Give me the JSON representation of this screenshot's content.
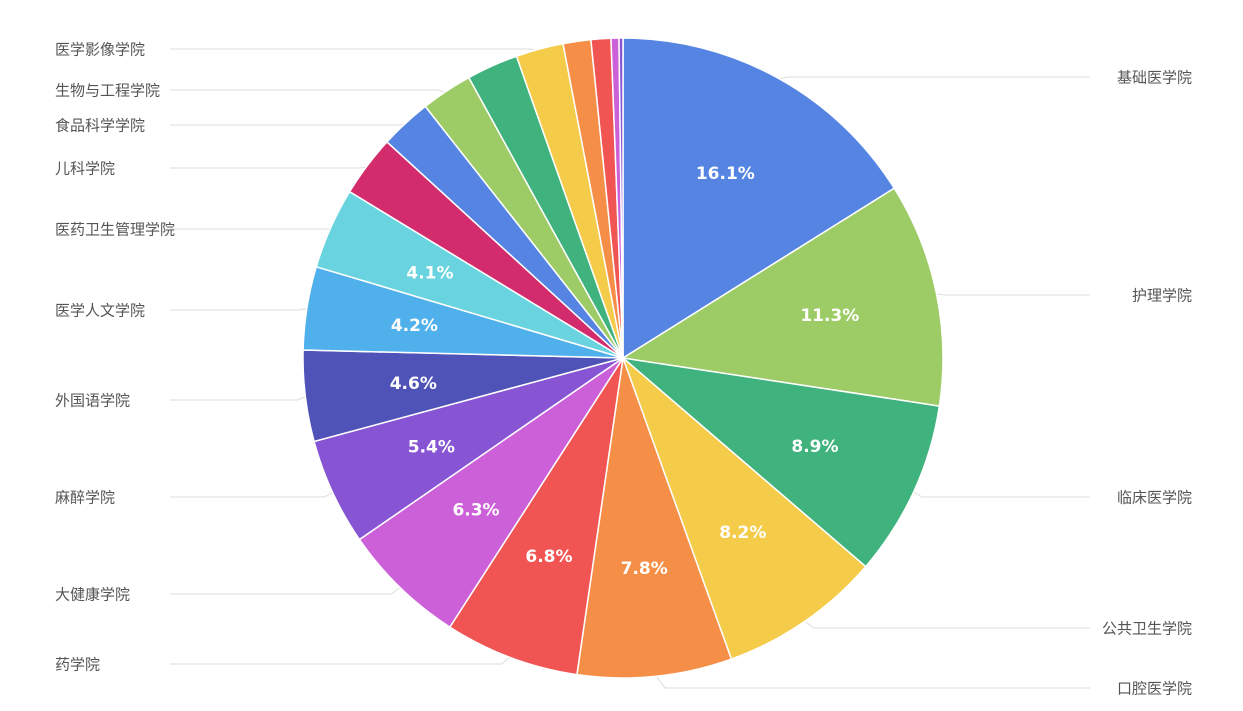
{
  "chart_data": {
    "type": "pie",
    "title": "",
    "start": "top",
    "direction": "clockwise",
    "slices": [
      {
        "name": "基础医学院",
        "value": 16.1,
        "label": "16.1%",
        "color": "#5584e3"
      },
      {
        "name": "护理学院",
        "value": 11.3,
        "label": "11.3%",
        "color": "#9dcc66"
      },
      {
        "name": "临床医学院",
        "value": 8.9,
        "label": "8.9%",
        "color": "#3fb27d"
      },
      {
        "name": "公共卫生学院",
        "value": 8.2,
        "label": "8.2%",
        "color": "#f5cb4a"
      },
      {
        "name": "口腔医学院",
        "value": 7.8,
        "label": "7.8%",
        "color": "#f58f47"
      },
      {
        "name": "药学院",
        "value": 6.8,
        "label": "6.8%",
        "color": "#f15553"
      },
      {
        "name": "大健康学院",
        "value": 6.3,
        "label": "6.3%",
        "color": "#cc60d8"
      },
      {
        "name": "麻醉学院",
        "value": 5.4,
        "label": "5.4%",
        "color": "#8755d4"
      },
      {
        "name": "外国语学院",
        "value": 4.6,
        "label": "4.6%",
        "color": "#4f53b8"
      },
      {
        "name": "医学人文学院",
        "value": 4.2,
        "label": "4.2%",
        "color": "#4fb0ec"
      },
      {
        "name": "医药卫生管理学院",
        "value": 4.1,
        "label": "4.1%",
        "color": "#69d4df"
      },
      {
        "name": "儿科学院",
        "value": 3.1,
        "color": "#d22c6c"
      },
      {
        "name": "食品科学学院",
        "value": 2.6,
        "color": "#5584e3"
      },
      {
        "name": "生物与工程学院",
        "value": 2.6,
        "color": "#9dcc66"
      },
      {
        "name": "",
        "value": 2.6,
        "color": "#3fb27d"
      },
      {
        "name": "医学影像学院",
        "value": 2.4,
        "color": "#f5cb4a"
      },
      {
        "name": "",
        "value": 1.4,
        "color": "#f58f47"
      },
      {
        "name": "",
        "value": 1.0,
        "color": "#f15553"
      },
      {
        "name": "",
        "value": 0.4,
        "color": "#cc60d8"
      },
      {
        "name": "",
        "value": 0.2,
        "color": "#8755d4"
      }
    ]
  }
}
